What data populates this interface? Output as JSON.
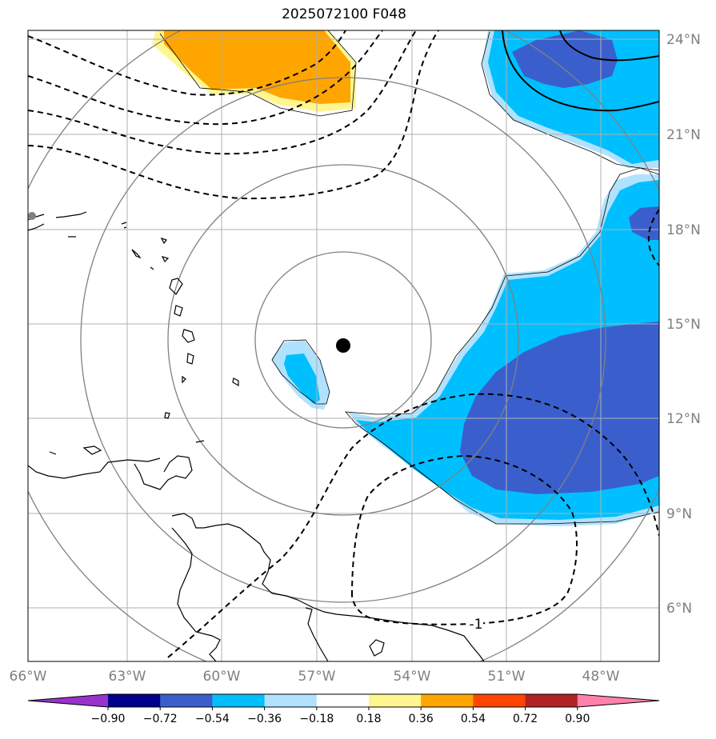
{
  "title": "2025072100 F048",
  "map": {
    "lon_labels": [
      "66°W",
      "63°W",
      "60°W",
      "57°W",
      "54°W",
      "51°W",
      "48°W"
    ],
    "lat_labels": [
      "24°N",
      "21°N",
      "18°N",
      "15°N",
      "12°N",
      "9°N",
      "6°N"
    ],
    "contour_label": "-1",
    "center_marker": "storm-center",
    "range_rings": "concentric distance rings around center"
  },
  "colorbar": {
    "ticks": [
      "−0.90",
      "−0.72",
      "−0.54",
      "−0.36",
      "−0.18",
      "0.18",
      "0.36",
      "0.54",
      "0.72",
      "0.90"
    ],
    "colors": [
      "#9932cc",
      "#00008b",
      "#3a5fcd",
      "#00bfff",
      "#b0e2ff",
      "#ffffff",
      "#fff68f",
      "#ffa500",
      "#ff4500",
      "#b22222",
      "#ff82ab"
    ]
  },
  "colors": {
    "strong_negative": "#3a5fcd",
    "moderate_negative": "#00bfff",
    "weak_negative": "#b0e2ff",
    "weak_positive": "#fff68f",
    "moderate_positive": "#ffa500",
    "grid": "#aaaaaa",
    "rings": "#808080",
    "labels": "#808080"
  }
}
